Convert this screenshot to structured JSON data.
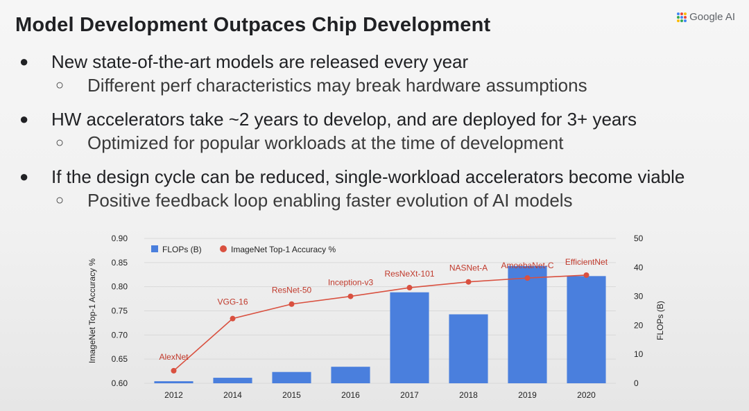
{
  "slide": {
    "title": "Model Development Outpaces Chip Development",
    "brand": "Google AI",
    "bullets": [
      {
        "text": "New state-of-the-art models are released every year",
        "sub": "Different perf characteristics may break hardware assumptions"
      },
      {
        "text": "HW accelerators take ~2 years to develop, and are deployed for 3+ years",
        "sub": "Optimized for popular workloads at the time of development"
      },
      {
        "text": "If the design cycle can be reduced, single-workload accelerators become viable",
        "sub": "Positive feedback loop enabling faster evolution of AI models"
      }
    ],
    "bullet_glyph": "●",
    "sub_glyph": "○"
  },
  "chart_data": {
    "type": "bar",
    "combo": "bar+line",
    "categories": [
      "2012",
      "2014",
      "2015",
      "2016",
      "2017",
      "2018",
      "2019",
      "2020"
    ],
    "series": [
      {
        "name": "FLOPs (B)",
        "type": "bar",
        "axis": "right",
        "values": [
          0.7,
          1.9,
          3.9,
          5.7,
          31.4,
          23.8,
          40.5,
          37.0
        ],
        "color": "#4a7fdd"
      },
      {
        "name": "ImageNet Top-1 Accuracy %",
        "type": "line",
        "axis": "left",
        "values": [
          0.626,
          0.734,
          0.764,
          0.78,
          0.798,
          0.81,
          0.818,
          0.824
        ],
        "point_labels": [
          "AlexNet",
          "VGG-16",
          "ResNet-50",
          "Inception-v3",
          "ResNeXt-101",
          "NASNet-A",
          "AmoebaNet-C",
          "EfficientNet"
        ],
        "color": "#d9503f"
      }
    ],
    "ylabel": "ImageNet Top-1 Accuracy %",
    "y2label": "FLOPs (B)",
    "ylim": [
      0.6,
      0.9
    ],
    "y2lim": [
      0,
      50
    ],
    "yticks": [
      "0.90",
      "0.85",
      "0.80",
      "0.75",
      "0.70",
      "0.65",
      "0.60"
    ],
    "y2ticks": [
      "50",
      "40",
      "30",
      "20",
      "10",
      "0"
    ],
    "grid": true,
    "legend": "top-left",
    "label_color": "#c0392b"
  }
}
